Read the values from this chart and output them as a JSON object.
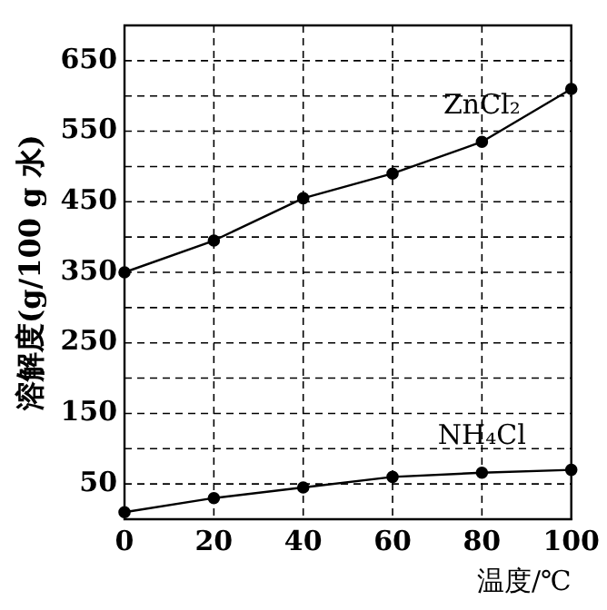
{
  "chart_data": {
    "type": "line",
    "xlabel": "温度/℃",
    "ylabel": "溶解度(g/100 g 水)",
    "x": [
      0,
      20,
      40,
      60,
      80,
      100
    ],
    "series": [
      {
        "name": "ZnCl₂",
        "color": "#000000",
        "values": [
          350,
          395,
          455,
          490,
          535,
          610
        ]
      },
      {
        "name": "NH₄Cl",
        "color": "#000000",
        "values": [
          10,
          30,
          45,
          60,
          66,
          70
        ]
      }
    ],
    "xlim": [
      0,
      100
    ],
    "xticks": [
      0,
      20,
      40,
      60,
      80,
      100
    ],
    "ylim": [
      0,
      700
    ],
    "yticks": [
      50,
      {
        "value": 100,
        "label": null
      },
      150,
      {
        "value": 200,
        "label": null
      },
      250,
      {
        "value": 300,
        "label": null
      },
      350,
      {
        "value": 400,
        "label": null
      },
      450,
      {
        "value": 500,
        "label": null
      },
      550,
      {
        "value": 600,
        "label": null
      },
      650
    ],
    "grid": true,
    "legend": false,
    "marker": "circle",
    "line_style": "solid"
  }
}
